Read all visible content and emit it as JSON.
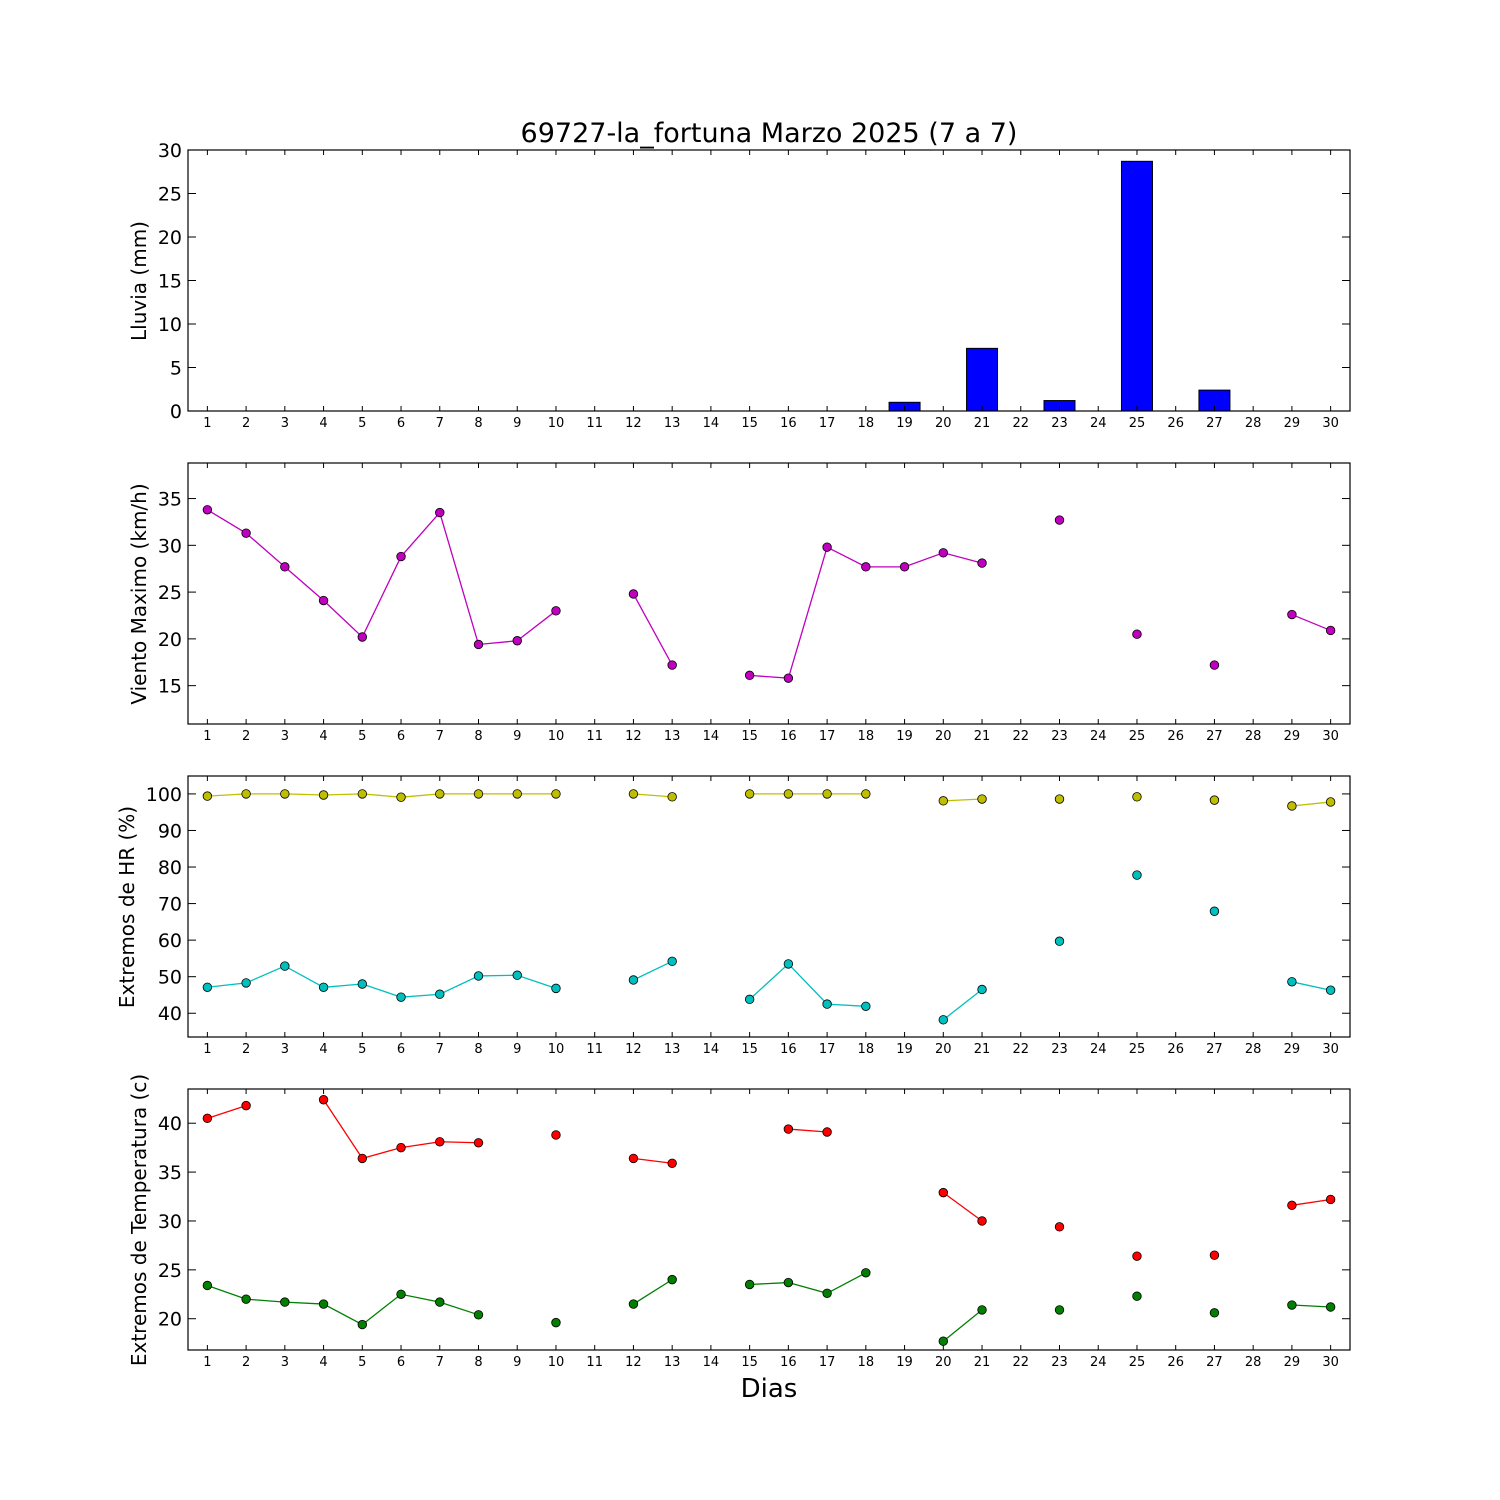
{
  "chart_data": [
    {
      "type": "bar",
      "title": "69727-la_fortuna Marzo 2025  (7 a 7)",
      "ylabel": "Lluvia (mm)",
      "xlabel": "",
      "ylim": [
        0,
        30
      ],
      "yticks": [
        0,
        5,
        10,
        15,
        20,
        25,
        30
      ],
      "x": [
        1,
        2,
        3,
        4,
        5,
        6,
        7,
        8,
        9,
        10,
        11,
        12,
        13,
        14,
        15,
        16,
        17,
        18,
        19,
        20,
        21,
        22,
        23,
        24,
        25,
        26,
        27,
        28,
        29,
        30
      ],
      "series": [
        {
          "color": "#0000ff",
          "values": [
            0,
            0,
            0,
            0,
            0,
            0,
            0,
            0,
            0,
            0,
            0,
            0,
            0,
            0,
            0,
            0,
            0,
            0,
            1.0,
            0,
            7.2,
            0,
            1.2,
            0,
            28.7,
            0,
            2.4,
            0,
            0,
            0
          ]
        }
      ],
      "grid": false
    },
    {
      "type": "line",
      "title": "",
      "ylabel": "Viento Maximo (km/h)",
      "xlabel": "",
      "ylim": [
        10.9,
        38.8
      ],
      "yticks": [
        15,
        20,
        25,
        30,
        35
      ],
      "x": [
        1,
        2,
        3,
        4,
        5,
        6,
        7,
        8,
        9,
        10,
        11,
        12,
        13,
        14,
        15,
        16,
        17,
        18,
        19,
        20,
        21,
        22,
        23,
        24,
        25,
        26,
        27,
        28,
        29,
        30
      ],
      "series": [
        {
          "color": "#bf00bf",
          "values": [
            33.8,
            31.3,
            27.7,
            24.1,
            20.2,
            28.8,
            33.5,
            19.4,
            19.8,
            23.0,
            null,
            24.8,
            17.2,
            null,
            16.1,
            15.8,
            29.8,
            27.7,
            27.7,
            29.2,
            28.1,
            null,
            32.7,
            null,
            20.5,
            null,
            17.2,
            null,
            22.6,
            20.9
          ]
        }
      ],
      "grid": false
    },
    {
      "type": "line",
      "title": "",
      "ylabel": "Extremos de HR (%)",
      "xlabel": "",
      "ylim": [
        33.5,
        104.9
      ],
      "yticks": [
        40,
        50,
        60,
        70,
        80,
        90,
        100
      ],
      "x": [
        1,
        2,
        3,
        4,
        5,
        6,
        7,
        8,
        9,
        10,
        11,
        12,
        13,
        14,
        15,
        16,
        17,
        18,
        19,
        20,
        21,
        22,
        23,
        24,
        25,
        26,
        27,
        28,
        29,
        30
      ],
      "series": [
        {
          "color": "#bfbf00",
          "values": [
            99.4,
            100,
            100,
            99.7,
            100,
            99.1,
            100,
            100,
            100,
            100,
            null,
            100,
            99.2,
            null,
            100,
            100,
            100,
            100,
            null,
            98.1,
            98.6,
            null,
            98.6,
            null,
            99.2,
            null,
            98.3,
            null,
            96.7,
            97.8
          ]
        },
        {
          "color": "#00bfbf",
          "values": [
            47.1,
            48.3,
            52.9,
            47.1,
            48.0,
            44.4,
            45.2,
            50.2,
            50.4,
            46.8,
            null,
            49.1,
            54.2,
            null,
            43.8,
            53.5,
            42.5,
            41.9,
            null,
            38.2,
            46.5,
            null,
            59.7,
            null,
            77.8,
            null,
            67.9,
            null,
            48.6,
            46.3
          ]
        }
      ],
      "grid": false
    },
    {
      "type": "line",
      "title": "",
      "ylabel": "Extremos de Temperatura (c)",
      "xlabel": "Dias",
      "ylim": [
        16.8,
        43.5
      ],
      "yticks": [
        20,
        25,
        30,
        35,
        40
      ],
      "x": [
        1,
        2,
        3,
        4,
        5,
        6,
        7,
        8,
        9,
        10,
        11,
        12,
        13,
        14,
        15,
        16,
        17,
        18,
        19,
        20,
        21,
        22,
        23,
        24,
        25,
        26,
        27,
        28,
        29,
        30
      ],
      "series": [
        {
          "color": "#ff0000",
          "values": [
            40.5,
            41.8,
            null,
            42.4,
            36.4,
            37.5,
            38.1,
            38.0,
            null,
            38.8,
            null,
            36.4,
            35.9,
            null,
            null,
            39.4,
            39.1,
            null,
            null,
            32.9,
            30.0,
            null,
            29.4,
            null,
            26.4,
            null,
            26.5,
            null,
            31.6,
            32.2
          ]
        },
        {
          "color": "#007f00",
          "values": [
            23.4,
            22.0,
            21.7,
            21.5,
            19.4,
            22.5,
            21.7,
            20.4,
            null,
            19.6,
            null,
            21.5,
            24.0,
            null,
            23.5,
            23.7,
            22.6,
            24.7,
            null,
            17.7,
            20.9,
            null,
            20.9,
            null,
            22.3,
            null,
            20.6,
            null,
            21.4,
            21.2
          ]
        }
      ],
      "grid": false
    }
  ]
}
